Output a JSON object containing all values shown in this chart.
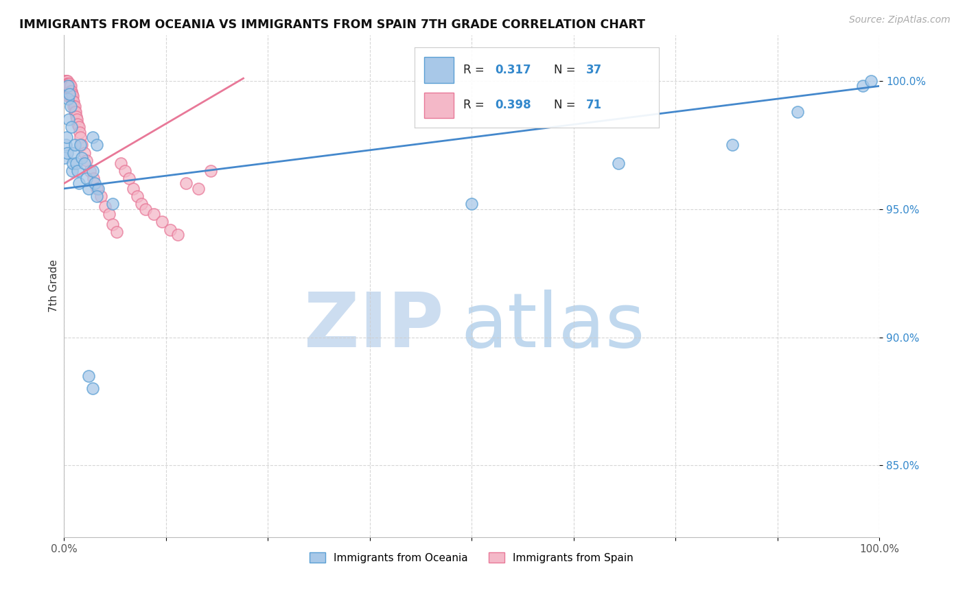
{
  "title": "IMMIGRANTS FROM OCEANIA VS IMMIGRANTS FROM SPAIN 7TH GRADE CORRELATION CHART",
  "source": "Source: ZipAtlas.com",
  "ylabel": "7th Grade",
  "y_tick_values": [
    0.85,
    0.9,
    0.95,
    1.0
  ],
  "xlim": [
    0.0,
    1.0
  ],
  "ylim": [
    0.822,
    1.018
  ],
  "legend_r_blue": "R = ",
  "legend_v_blue": "0.317",
  "legend_n_blue_label": "N = ",
  "legend_n_blue": "37",
  "legend_r_pink": "R = ",
  "legend_v_pink": "0.398",
  "legend_n_pink_label": "N = ",
  "legend_n_pink": "71",
  "blue_fill": "#a8c8e8",
  "blue_edge": "#5a9fd4",
  "pink_fill": "#f4b8c8",
  "pink_edge": "#e87898",
  "blue_line_color": "#4488cc",
  "pink_line_color": "#dd6688",
  "r_value_color": "#3388cc",
  "watermark_zip_color": "#ccddf0",
  "watermark_atlas_color": "#c0d8ee",
  "grid_color": "#cccccc",
  "bottom_legend_labels": [
    "Immigrants from Oceania",
    "Immigrants from Spain"
  ],
  "blue_scatter_x": [
    0.001,
    0.002,
    0.003,
    0.004,
    0.005,
    0.005,
    0.006,
    0.007,
    0.008,
    0.009,
    0.01,
    0.011,
    0.012,
    0.013,
    0.015,
    0.017,
    0.018,
    0.02,
    0.022,
    0.025,
    0.028,
    0.03,
    0.035,
    0.04,
    0.035,
    0.038,
    0.042,
    0.03,
    0.035,
    0.04,
    0.06,
    0.5,
    0.68,
    0.82,
    0.9,
    0.98,
    0.99
  ],
  "blue_scatter_y": [
    0.97,
    0.975,
    0.978,
    0.972,
    0.998,
    0.993,
    0.985,
    0.995,
    0.99,
    0.982,
    0.965,
    0.968,
    0.972,
    0.975,
    0.968,
    0.965,
    0.96,
    0.975,
    0.97,
    0.968,
    0.962,
    0.958,
    0.978,
    0.975,
    0.965,
    0.96,
    0.958,
    0.885,
    0.88,
    0.955,
    0.952,
    0.952,
    0.968,
    0.975,
    0.988,
    0.998,
    1.0
  ],
  "pink_scatter_x": [
    0.001,
    0.001,
    0.001,
    0.002,
    0.002,
    0.002,
    0.002,
    0.003,
    0.003,
    0.003,
    0.003,
    0.004,
    0.004,
    0.004,
    0.004,
    0.005,
    0.005,
    0.005,
    0.005,
    0.006,
    0.006,
    0.006,
    0.007,
    0.007,
    0.007,
    0.007,
    0.008,
    0.008,
    0.008,
    0.009,
    0.009,
    0.01,
    0.01,
    0.011,
    0.011,
    0.012,
    0.012,
    0.013,
    0.013,
    0.014,
    0.015,
    0.016,
    0.017,
    0.018,
    0.019,
    0.02,
    0.022,
    0.025,
    0.028,
    0.032,
    0.036,
    0.04,
    0.045,
    0.05,
    0.055,
    0.06,
    0.065,
    0.07,
    0.075,
    0.08,
    0.085,
    0.09,
    0.095,
    0.1,
    0.11,
    0.12,
    0.13,
    0.14,
    0.15,
    0.165,
    0.18
  ],
  "pink_scatter_y": [
    1.0,
    0.999,
    0.998,
    1.0,
    0.999,
    0.998,
    0.996,
    1.0,
    0.999,
    0.998,
    0.996,
    1.0,
    0.999,
    0.998,
    0.996,
    0.999,
    0.998,
    0.996,
    0.994,
    0.999,
    0.998,
    0.996,
    0.999,
    0.998,
    0.996,
    0.994,
    0.998,
    0.996,
    0.994,
    0.996,
    0.994,
    0.995,
    0.993,
    0.994,
    0.992,
    0.992,
    0.99,
    0.99,
    0.988,
    0.988,
    0.986,
    0.985,
    0.983,
    0.982,
    0.98,
    0.978,
    0.975,
    0.972,
    0.969,
    0.965,
    0.962,
    0.958,
    0.955,
    0.951,
    0.948,
    0.944,
    0.941,
    0.968,
    0.965,
    0.962,
    0.958,
    0.955,
    0.952,
    0.95,
    0.948,
    0.945,
    0.942,
    0.94,
    0.96,
    0.958,
    0.965
  ]
}
